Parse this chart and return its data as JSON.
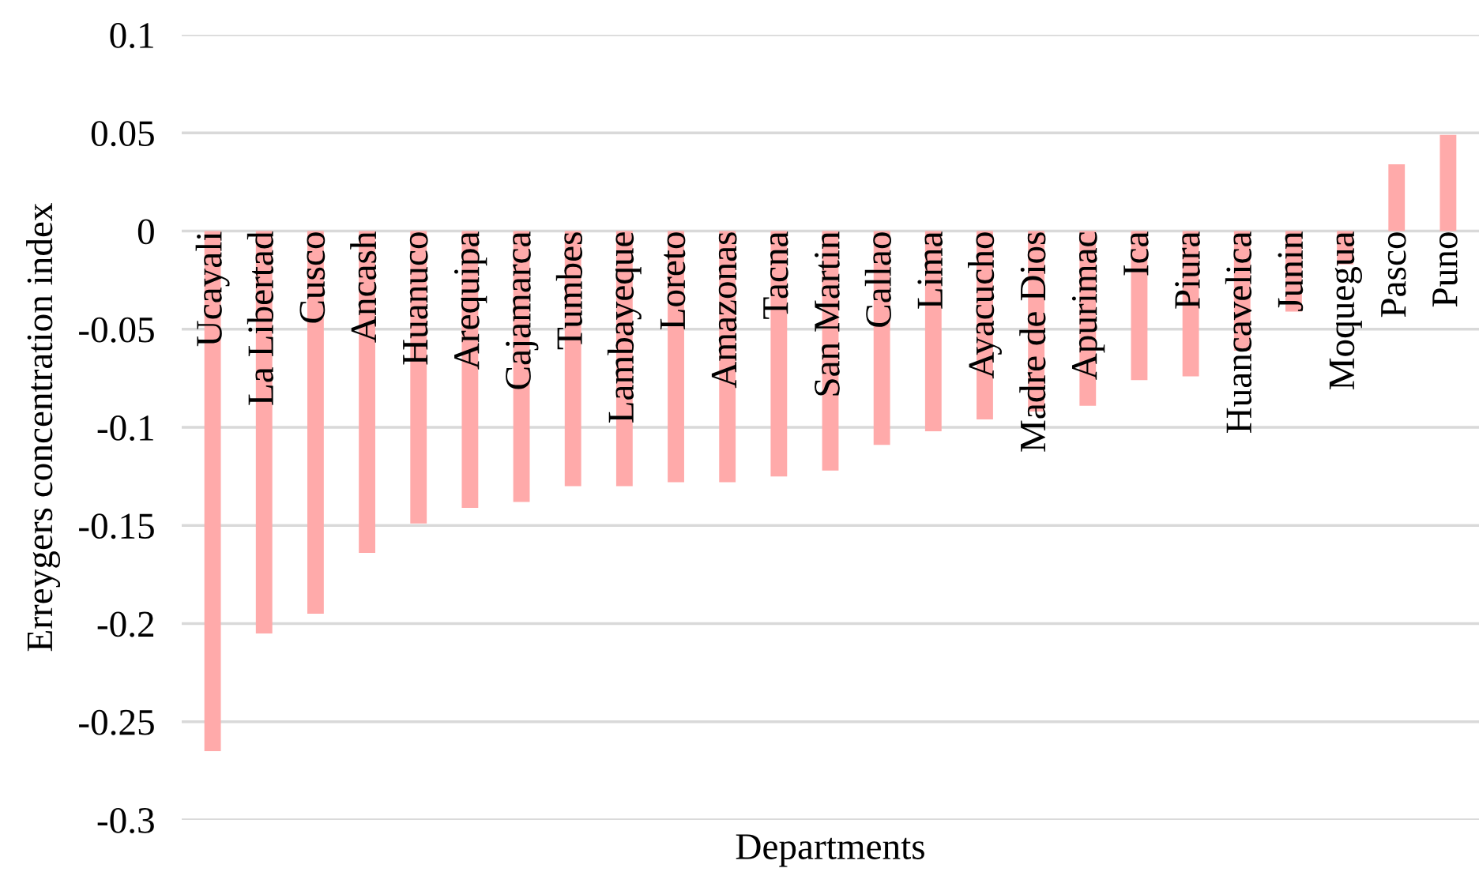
{
  "chart_data": {
    "type": "bar",
    "xlabel": "Departments",
    "ylabel": "Erreygers concentration index",
    "categories": [
      "Ucayali",
      "La Libertad",
      "Cusco",
      "Ancash",
      "Huanuco",
      "Arequipa",
      "Cajamarca",
      "Tumbes",
      "Lambayeque",
      "Loreto",
      "Amazonas",
      "Tacna",
      "San Martin",
      "Callao",
      "Lima",
      "Ayacucho",
      "Madre de Dios",
      "Apurimac",
      "Ica",
      "Piura",
      "Huancavelica",
      "Junin",
      "Moquegua",
      "Pasco",
      "Puno"
    ],
    "values": [
      -0.265,
      -0.205,
      -0.195,
      -0.164,
      -0.149,
      -0.141,
      -0.138,
      -0.13,
      -0.13,
      -0.128,
      -0.128,
      -0.125,
      -0.122,
      -0.109,
      -0.102,
      -0.096,
      -0.092,
      -0.089,
      -0.076,
      -0.074,
      -0.061,
      -0.041,
      -0.017,
      0.034,
      0.049
    ],
    "color": "#ffaaaa",
    "ylim": [
      -0.3,
      0.1
    ],
    "yticks": [
      {
        "value": -0.3,
        "label": "-0.3"
      },
      {
        "value": -0.25,
        "label": "-0.25"
      },
      {
        "value": -0.2,
        "label": "-0.2"
      },
      {
        "value": -0.15,
        "label": "-0.15"
      },
      {
        "value": -0.1,
        "label": "-0.1"
      },
      {
        "value": -0.05,
        "label": "-0.05"
      },
      0,
      0.05,
      0.1
    ],
    "grid": "y"
  }
}
